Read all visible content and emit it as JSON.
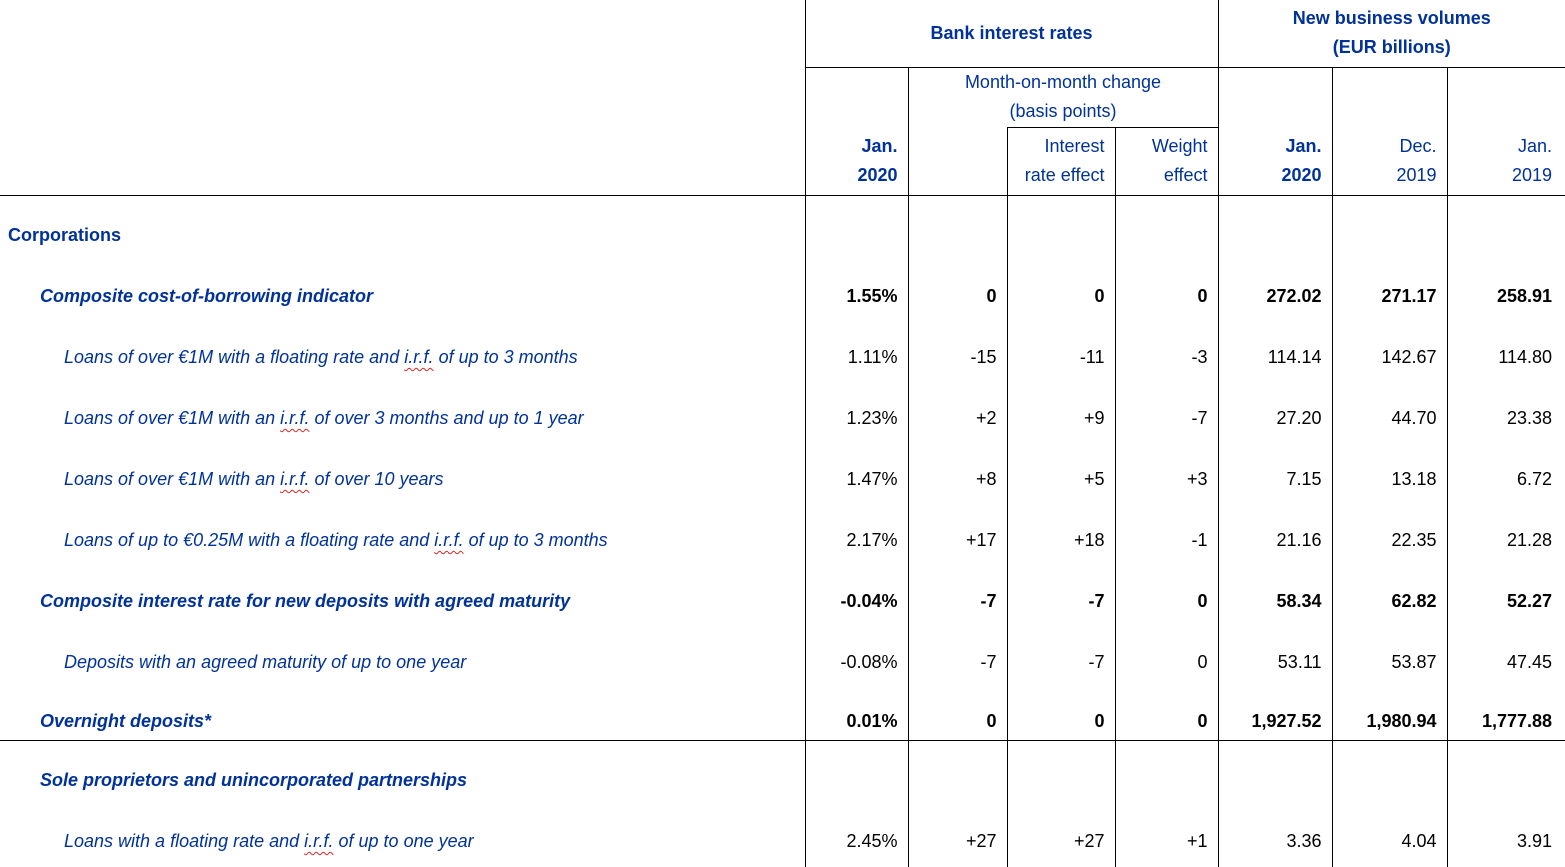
{
  "colors": {
    "heading_blue": "#003299",
    "value_black": "#000000",
    "grid_line": "#000000",
    "spellcheck_red": "#e02424"
  },
  "table": {
    "header": {
      "bank_interest_rates": "Bank interest rates",
      "new_business_volumes": [
        "New business volumes",
        "(EUR billions)"
      ],
      "month_on_month": [
        "Month-on-month change",
        "(basis points)"
      ],
      "rate_period": [
        "Jan.",
        "2020"
      ],
      "interest_rate_effect": [
        "Interest",
        "rate effect"
      ],
      "weight_effect": [
        "Weight",
        "effect"
      ],
      "volume_jan_2020": [
        "Jan.",
        "2020"
      ],
      "volume_dec_2019": [
        "Dec.",
        "2019"
      ],
      "volume_jan_2019": [
        "Jan.",
        "2019"
      ]
    },
    "rows": [
      {
        "id": "corporations",
        "style": "section",
        "indent": 0,
        "label_parts": [
          {
            "text": "Corporations"
          }
        ],
        "values": [
          "",
          "",
          "",
          "",
          "",
          "",
          ""
        ]
      },
      {
        "id": "composite-cost-of-borrowing-indicator",
        "style": "subtotal",
        "indent": 1,
        "label_parts": [
          {
            "text": "Composite cost-of-borrowing indicator"
          }
        ],
        "values": [
          "1.55%",
          "0",
          "0",
          "0",
          "272.02",
          "271.17",
          "258.91"
        ]
      },
      {
        "id": "loans-over-1m-floating-irf-up-to-3-months",
        "style": "detail",
        "indent": 2,
        "label_parts": [
          {
            "text": "Loans of over €1M with a floating rate and "
          },
          {
            "text": "i.r.f.",
            "misspelled": true
          },
          {
            "text": " of up to 3 months"
          }
        ],
        "values": [
          "1.11%",
          "-15",
          "-11",
          "-3",
          "114.14",
          "142.67",
          "114.80"
        ]
      },
      {
        "id": "loans-over-1m-irf-over-3-months-up-to-1-year",
        "style": "detail",
        "indent": 2,
        "label_parts": [
          {
            "text": "Loans of over €1M with an "
          },
          {
            "text": "i.r.f.",
            "misspelled": true
          },
          {
            "text": " of over 3 months and up to 1 year"
          }
        ],
        "values": [
          "1.23%",
          "+2",
          "+9",
          "-7",
          "27.20",
          "44.70",
          "23.38"
        ]
      },
      {
        "id": "loans-over-1m-irf-over-10-years",
        "style": "detail",
        "indent": 2,
        "label_parts": [
          {
            "text": "Loans of over €1M with an "
          },
          {
            "text": "i.r.f.",
            "misspelled": true
          },
          {
            "text": " of over 10 years"
          }
        ],
        "values": [
          "1.47%",
          "+8",
          "+5",
          "+3",
          "7.15",
          "13.18",
          "6.72"
        ]
      },
      {
        "id": "loans-up-to-025m-floating-irf-up-to-3-months",
        "style": "detail",
        "indent": 2,
        "label_parts": [
          {
            "text": "Loans of up to €0.25M with a floating rate and "
          },
          {
            "text": "i.r.f.",
            "misspelled": true
          },
          {
            "text": " of up to 3 months"
          }
        ],
        "values": [
          "2.17%",
          "+17",
          "+18",
          "-1",
          "21.16",
          "22.35",
          "21.28"
        ]
      },
      {
        "id": "composite-rate-new-deposits-agreed-maturity",
        "style": "subtotal",
        "indent": 1,
        "label_parts": [
          {
            "text": "Composite interest rate for new deposits with agreed maturity"
          }
        ],
        "values": [
          "-0.04%",
          "-7",
          "-7",
          "0",
          "58.34",
          "62.82",
          "52.27"
        ]
      },
      {
        "id": "deposits-agreed-maturity-up-to-one-year",
        "style": "detail",
        "indent": 2,
        "label_parts": [
          {
            "text": "Deposits with an agreed maturity of up to one year"
          }
        ],
        "values": [
          "-0.08%",
          "-7",
          "-7",
          "0",
          "53.11",
          "53.87",
          "47.45"
        ]
      },
      {
        "id": "overnight-deposits",
        "style": "subtotal",
        "indent": 1,
        "divider_after": true,
        "label_parts": [
          {
            "text": "Overnight deposits*"
          }
        ],
        "values": [
          "0.01%",
          "0",
          "0",
          "0",
          "1,927.52",
          "1,980.94",
          "1,777.88"
        ]
      },
      {
        "id": "sole-proprietors-and-unincorporated-partnerships",
        "style": "subtotal",
        "indent": 1,
        "label_parts": [
          {
            "text": "Sole proprietors and unincorporated partnerships"
          }
        ],
        "values": [
          "",
          "",
          "",
          "",
          "",
          "",
          ""
        ]
      },
      {
        "id": "loans-floating-rate-irf-up-to-one-year",
        "style": "detail",
        "indent": 2,
        "label_parts": [
          {
            "text": "Loans with a floating rate and "
          },
          {
            "text": "i.r.f.",
            "misspelled": true
          },
          {
            "text": " of up to one year"
          }
        ],
        "values": [
          "2.45%",
          "+27",
          "+27",
          "+1",
          "3.36",
          "4.04",
          "3.91"
        ]
      }
    ]
  }
}
